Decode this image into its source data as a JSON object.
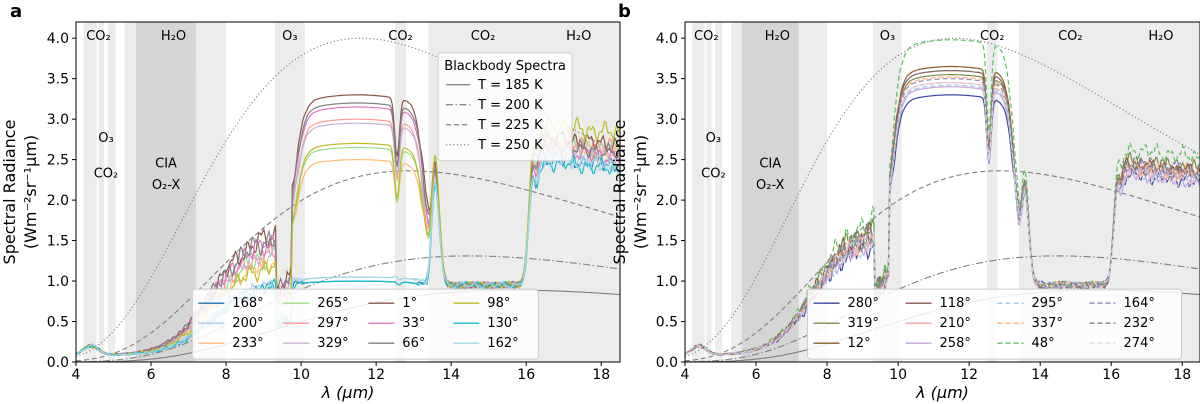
{
  "chart_data": [
    {
      "type": "line",
      "panel_label": "a",
      "xlabel": "λ (μm)",
      "ylabel": [
        "Spectral Radiance",
        "(Wm⁻²sr⁻¹μm)"
      ],
      "xlim": [
        4,
        18.5
      ],
      "ylim": [
        0,
        4.2
      ],
      "xticks": [
        4,
        6,
        8,
        10,
        12,
        14,
        16,
        18
      ],
      "yticks": [
        0.0,
        0.5,
        1.0,
        1.5,
        2.0,
        2.5,
        3.0,
        3.5,
        4.0
      ],
      "absorption_bands": [
        {
          "x0": 4.2,
          "x1": 4.55,
          "shade": "#ececec"
        },
        {
          "x0": 4.6,
          "x1": 4.75,
          "shade": "#ececec"
        },
        {
          "x0": 4.85,
          "x1": 5.05,
          "shade": "#ececec"
        },
        {
          "x0": 5.3,
          "x1": 8.0,
          "shade": "#ececec"
        },
        {
          "x0": 5.6,
          "x1": 7.2,
          "shade": "#d5d5d5"
        },
        {
          "x0": 9.3,
          "x1": 10.1,
          "shade": "#ececec"
        },
        {
          "x0": 12.5,
          "x1": 12.8,
          "shade": "#ececec"
        },
        {
          "x0": 13.4,
          "x1": 16.3,
          "shade": "#ececec"
        },
        {
          "x0": 16.3,
          "x1": 18.5,
          "shade": "#ececec"
        }
      ],
      "band_labels": [
        {
          "text": "CO₂",
          "x": 4.6,
          "y": 3.98
        },
        {
          "text": "H₂O",
          "x": 6.6,
          "y": 3.98
        },
        {
          "text": "O₃",
          "x": 9.7,
          "y": 3.98
        },
        {
          "text": "CO₂",
          "x": 12.65,
          "y": 3.98
        },
        {
          "text": "CO₂",
          "x": 14.85,
          "y": 3.98
        },
        {
          "text": "H₂O",
          "x": 17.4,
          "y": 3.98
        },
        {
          "text": "O₃",
          "x": 4.8,
          "y": 2.72
        },
        {
          "text": "CO₂",
          "x": 4.8,
          "y": 2.28
        },
        {
          "text": "CIA",
          "x": 6.4,
          "y": 2.4
        },
        {
          "text": "O₂-X",
          "x": 6.4,
          "y": 2.14
        }
      ],
      "blackbody_legend": {
        "title": "Blackbody Spectra",
        "entries": [
          "T = 185 K",
          "T = 200 K",
          "T = 225 K",
          "T = 250 K"
        ]
      },
      "blackbody": [
        {
          "label": "T = 185 K",
          "temperature": 185,
          "dash": ""
        },
        {
          "label": "T = 200 K",
          "temperature": 200,
          "dash": "7 2.5 1.5 2.5"
        },
        {
          "label": "T = 225 K",
          "temperature": 225,
          "dash": "5 3"
        },
        {
          "label": "T = 250 K",
          "temperature": 250,
          "dash": "1.2 2.4"
        }
      ],
      "series": [
        {
          "name": "168°",
          "color": "#1f77b4",
          "dash": "",
          "plateau": 1.0,
          "peak": 1.6,
          "low": 0.0,
          "spike": 1.0,
          "band_peak": 2.5
        },
        {
          "name": "200°",
          "color": "#aec7e8",
          "dash": "",
          "plateau": 1.05,
          "peak": 1.65,
          "low": 0.05,
          "spike": 1.1,
          "band_peak": 2.5
        },
        {
          "name": "233°",
          "color": "#ffbb78",
          "dash": "",
          "plateau": 2.5,
          "peak": 2.2,
          "low": 0.35,
          "spike": 1.75,
          "band_peak": 2.65
        },
        {
          "name": "265°",
          "color": "#98df8a",
          "dash": "",
          "plateau": 2.65,
          "peak": 2.35,
          "low": 0.3,
          "spike": 1.65,
          "band_peak": 2.7
        },
        {
          "name": "297°",
          "color": "#ff9896",
          "dash": "",
          "plateau": 3.0,
          "peak": 2.4,
          "low": 0.4,
          "spike": 1.9,
          "band_peak": 2.7
        },
        {
          "name": "329°",
          "color": "#c5b0d5",
          "dash": "",
          "plateau": 2.95,
          "peak": 2.5,
          "low": 0.55,
          "spike": 2.05,
          "band_peak": 2.6
        },
        {
          "name": "1°",
          "color": "#8c564b",
          "dash": "",
          "plateau": 3.3,
          "peak": 2.8,
          "low": 0.75,
          "spike": 2.2,
          "band_peak": 2.75
        },
        {
          "name": "33°",
          "color": "#e377c2",
          "dash": "",
          "plateau": 3.15,
          "peak": 2.65,
          "low": 0.6,
          "spike": 2.1,
          "band_peak": 2.6
        },
        {
          "name": "66°",
          "color": "#7f7f7f",
          "dash": "",
          "plateau": 3.2,
          "peak": 2.75,
          "low": 0.7,
          "spike": 2.05,
          "band_peak": 2.65
        },
        {
          "name": "98°",
          "color": "#bcbd22",
          "dash": "",
          "plateau": 2.7,
          "peak": 2.1,
          "low": 0.45,
          "spike": 1.7,
          "band_peak": 2.9
        },
        {
          "name": "130°",
          "color": "#17becf",
          "dash": "",
          "plateau": 1.0,
          "peak": 1.6,
          "low": 0.05,
          "spike": 1.0,
          "band_peak": 2.45
        },
        {
          "name": "162°",
          "color": "#9edae5",
          "dash": "",
          "plateau": 1.05,
          "peak": 1.62,
          "low": 0.05,
          "spike": 1.1,
          "band_peak": 2.5
        }
      ],
      "legend": {
        "ncol": 4,
        "entries": [
          "168°",
          "200°",
          "233°",
          "265°",
          "297°",
          "329°",
          "1°",
          "33°",
          "66°",
          "98°",
          "130°",
          "162°"
        ]
      }
    },
    {
      "type": "line",
      "panel_label": "b",
      "xlabel": "λ (μm)",
      "ylabel": [
        "Spectral Radiance",
        "(Wm⁻²sr⁻¹μm)"
      ],
      "xlim": [
        4,
        18.5
      ],
      "ylim": [
        0,
        4.2
      ],
      "xticks": [
        4,
        6,
        8,
        10,
        12,
        14,
        16,
        18
      ],
      "yticks": [
        0.0,
        0.5,
        1.0,
        1.5,
        2.0,
        2.5,
        3.0,
        3.5,
        4.0
      ],
      "absorption_bands": [
        {
          "x0": 4.2,
          "x1": 4.55,
          "shade": "#ececec"
        },
        {
          "x0": 4.6,
          "x1": 4.75,
          "shade": "#ececec"
        },
        {
          "x0": 4.85,
          "x1": 5.05,
          "shade": "#ececec"
        },
        {
          "x0": 5.3,
          "x1": 8.0,
          "shade": "#ececec"
        },
        {
          "x0": 5.6,
          "x1": 7.2,
          "shade": "#d5d5d5"
        },
        {
          "x0": 9.3,
          "x1": 10.1,
          "shade": "#ececec"
        },
        {
          "x0": 12.5,
          "x1": 12.8,
          "shade": "#ececec"
        },
        {
          "x0": 13.4,
          "x1": 16.3,
          "shade": "#ececec"
        },
        {
          "x0": 16.3,
          "x1": 18.5,
          "shade": "#ececec"
        }
      ],
      "band_labels": [
        {
          "text": "CO₂",
          "x": 4.6,
          "y": 3.98
        },
        {
          "text": "H₂O",
          "x": 6.6,
          "y": 3.98
        },
        {
          "text": "O₃",
          "x": 9.7,
          "y": 3.98
        },
        {
          "text": "CO₂",
          "x": 12.65,
          "y": 3.98
        },
        {
          "text": "CO₂",
          "x": 14.85,
          "y": 3.98
        },
        {
          "text": "H₂O",
          "x": 17.4,
          "y": 3.98
        },
        {
          "text": "O₃",
          "x": 4.8,
          "y": 2.72
        },
        {
          "text": "CO₂",
          "x": 4.8,
          "y": 2.28
        },
        {
          "text": "CIA",
          "x": 6.4,
          "y": 2.4
        },
        {
          "text": "O₂-X",
          "x": 6.4,
          "y": 2.14
        }
      ],
      "blackbody": [
        {
          "label": "T = 185 K",
          "temperature": 185,
          "dash": ""
        },
        {
          "label": "T = 200 K",
          "temperature": 200,
          "dash": "7 2.5 1.5 2.5"
        },
        {
          "label": "T = 225 K",
          "temperature": 225,
          "dash": "5 3"
        },
        {
          "label": "T = 250 K",
          "temperature": 250,
          "dash": "1.2 2.4"
        }
      ],
      "series": [
        {
          "name": "280°",
          "color": "#3a4a9c",
          "dash": "",
          "plateau": 3.3,
          "peak": 2.6,
          "low": 0.5,
          "spike": 2.05,
          "band_peak": 2.3
        },
        {
          "name": "319°",
          "color": "#7b8c4a",
          "dash": "",
          "plateau": 3.55,
          "peak": 2.9,
          "low": 0.5,
          "spike": 2.1,
          "band_peak": 2.45
        },
        {
          "name": "12°",
          "color": "#8b5a2b",
          "dash": "",
          "plateau": 3.65,
          "peak": 2.85,
          "low": 0.6,
          "spike": 2.2,
          "band_peak": 2.4
        },
        {
          "name": "118°",
          "color": "#8c564b",
          "dash": "",
          "plateau": 3.6,
          "peak": 2.8,
          "low": 0.55,
          "spike": 2.15,
          "band_peak": 2.4
        },
        {
          "name": "210°",
          "color": "#f4a3a3",
          "dash": "",
          "plateau": 3.45,
          "peak": 2.7,
          "low": 0.45,
          "spike": 2.1,
          "band_peak": 2.35
        },
        {
          "name": "258°",
          "color": "#c8a2e0",
          "dash": "",
          "plateau": 3.4,
          "peak": 2.65,
          "low": 0.45,
          "spike": 2.0,
          "band_peak": 2.3
        },
        {
          "name": "295°",
          "color": "#9ec7e8",
          "dash": "5 3",
          "plateau": 3.42,
          "peak": 2.7,
          "low": 0.45,
          "spike": 2.05,
          "band_peak": 2.35
        },
        {
          "name": "337°",
          "color": "#ffb070",
          "dash": "5 3",
          "plateau": 3.52,
          "peak": 2.8,
          "low": 0.5,
          "spike": 2.1,
          "band_peak": 2.4
        },
        {
          "name": "48°",
          "color": "#5cbf5c",
          "dash": "5 3",
          "plateau": 3.98,
          "peak": 3.1,
          "low": 0.5,
          "spike": 2.3,
          "band_peak": 2.6
        },
        {
          "name": "164°",
          "color": "#9488c0",
          "dash": "5 3",
          "plateau": 3.5,
          "peak": 2.75,
          "low": 0.5,
          "spike": 2.1,
          "band_peak": 2.4
        },
        {
          "name": "232°",
          "color": "#7f7f7f",
          "dash": "5 3",
          "plateau": 3.6,
          "peak": 2.85,
          "low": 0.55,
          "spike": 2.15,
          "band_peak": 2.45
        },
        {
          "name": "274°",
          "color": "#d9d9e8",
          "dash": "5 3",
          "plateau": 3.45,
          "peak": 2.7,
          "low": 0.45,
          "spike": 2.05,
          "band_peak": 2.3
        }
      ],
      "legend": {
        "ncol": 4,
        "entries": [
          "280°",
          "319°",
          "12°",
          "118°",
          "210°",
          "258°",
          "295°",
          "337°",
          "48°",
          "164°",
          "232°",
          "274°"
        ]
      }
    }
  ]
}
